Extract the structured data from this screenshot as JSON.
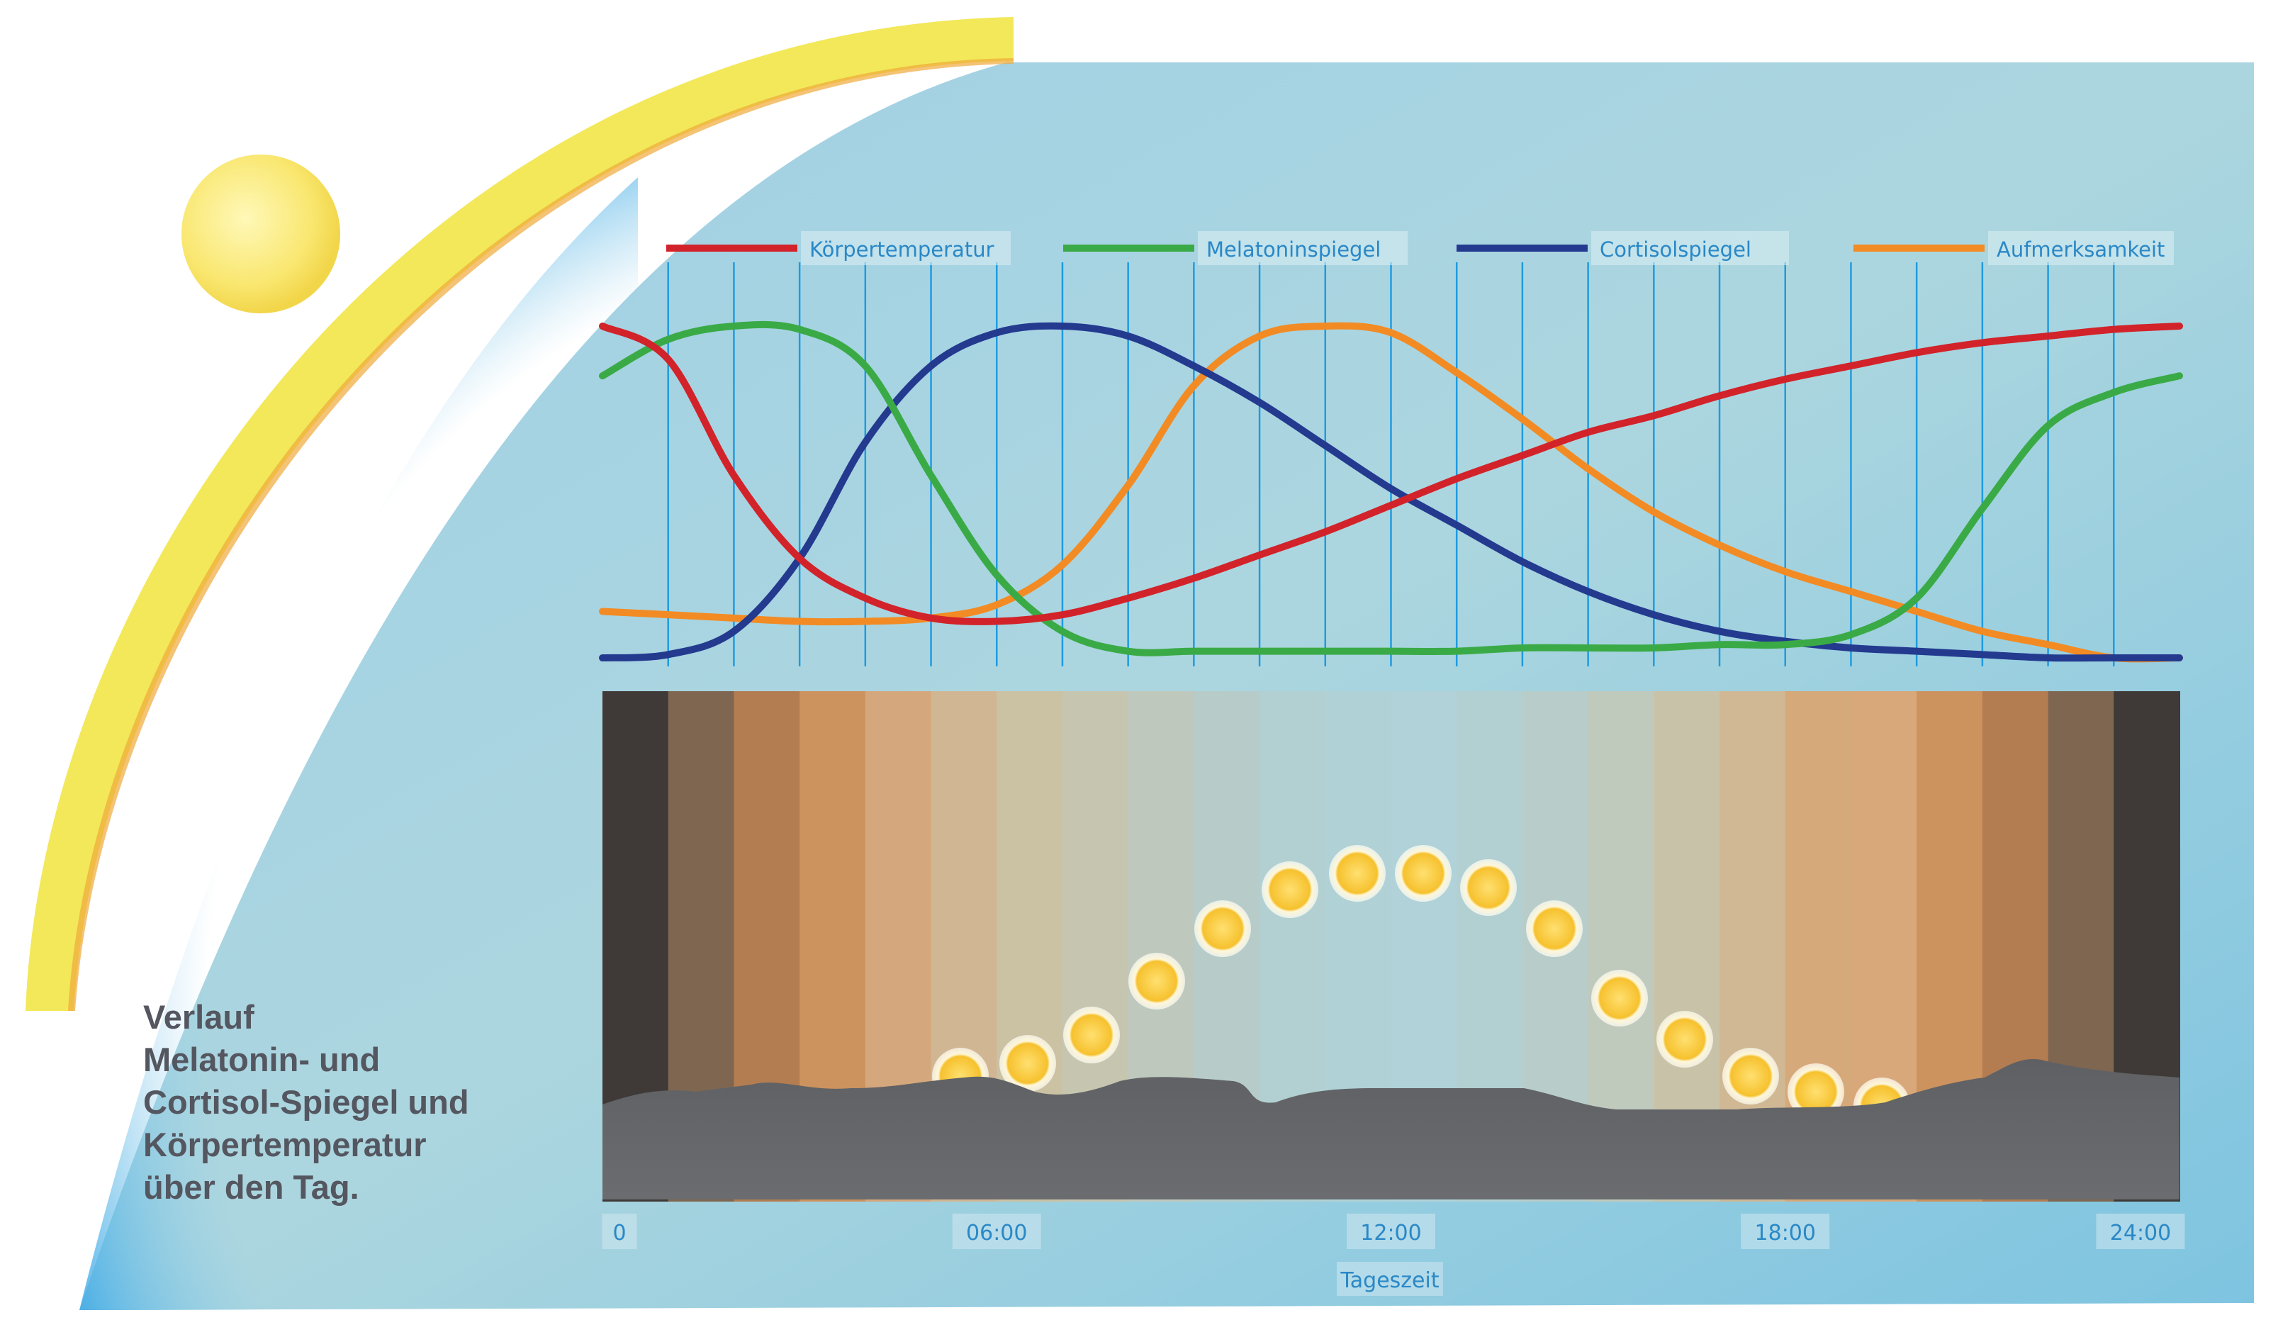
{
  "title": "Verlauf\nMelatonin- und\nCortisol-Spiegel und\nKörpertemperatur\nüber den Tag.",
  "colors": {
    "koerpertemperatur": "#d2232a",
    "melatonin": "#3aaa47",
    "cortisol": "#233a8f",
    "aufmerksamkeit": "#f28b24",
    "grid": "#1f9be0",
    "label_text": "#2a88c6",
    "background": "#a9d4e2",
    "sun_arc": "#f2e85a"
  },
  "chart_data": {
    "type": "line",
    "xlabel": "Tageszeit",
    "x_ticks": [
      "0",
      "06:00",
      "12:00",
      "18:00",
      "24:00"
    ],
    "xlim": [
      0,
      24
    ],
    "ylim": [
      0,
      1
    ],
    "ylabel": "",
    "grid": true,
    "legend_position": "top",
    "x": [
      0,
      1,
      2,
      3,
      4,
      5,
      6,
      7,
      8,
      9,
      10,
      11,
      12,
      13,
      14,
      15,
      16,
      17,
      18,
      19,
      20,
      21,
      22,
      23,
      24
    ],
    "series": [
      {
        "name": "Körpertemperatur",
        "color_key": "koerpertemperatur",
        "values": [
          1.0,
          0.9,
          0.55,
          0.3,
          0.18,
          0.12,
          0.11,
          0.13,
          0.18,
          0.24,
          0.31,
          0.38,
          0.46,
          0.54,
          0.61,
          0.68,
          0.73,
          0.79,
          0.84,
          0.88,
          0.92,
          0.95,
          0.97,
          0.99,
          1.0
        ]
      },
      {
        "name": "Melatoninspiegel",
        "color_key": "melatonin",
        "values": [
          0.85,
          0.96,
          1.0,
          0.99,
          0.88,
          0.55,
          0.25,
          0.08,
          0.02,
          0.02,
          0.02,
          0.02,
          0.02,
          0.02,
          0.03,
          0.03,
          0.03,
          0.04,
          0.04,
          0.07,
          0.18,
          0.45,
          0.7,
          0.8,
          0.85
        ]
      },
      {
        "name": "Cortisolspiegel",
        "color_key": "cortisol",
        "values": [
          0.0,
          0.01,
          0.08,
          0.3,
          0.65,
          0.88,
          0.98,
          1.0,
          0.97,
          0.88,
          0.77,
          0.64,
          0.51,
          0.4,
          0.29,
          0.2,
          0.13,
          0.08,
          0.05,
          0.03,
          0.02,
          0.01,
          0.0,
          0.0,
          0.0
        ]
      },
      {
        "name": "Aufmerksamkeit",
        "color_key": "aufmerksamkeit",
        "values": [
          0.14,
          0.13,
          0.12,
          0.11,
          0.11,
          0.12,
          0.16,
          0.28,
          0.52,
          0.82,
          0.97,
          1.0,
          0.98,
          0.86,
          0.72,
          0.57,
          0.44,
          0.34,
          0.26,
          0.2,
          0.14,
          0.08,
          0.04,
          0.0,
          0.0
        ]
      }
    ]
  }
}
